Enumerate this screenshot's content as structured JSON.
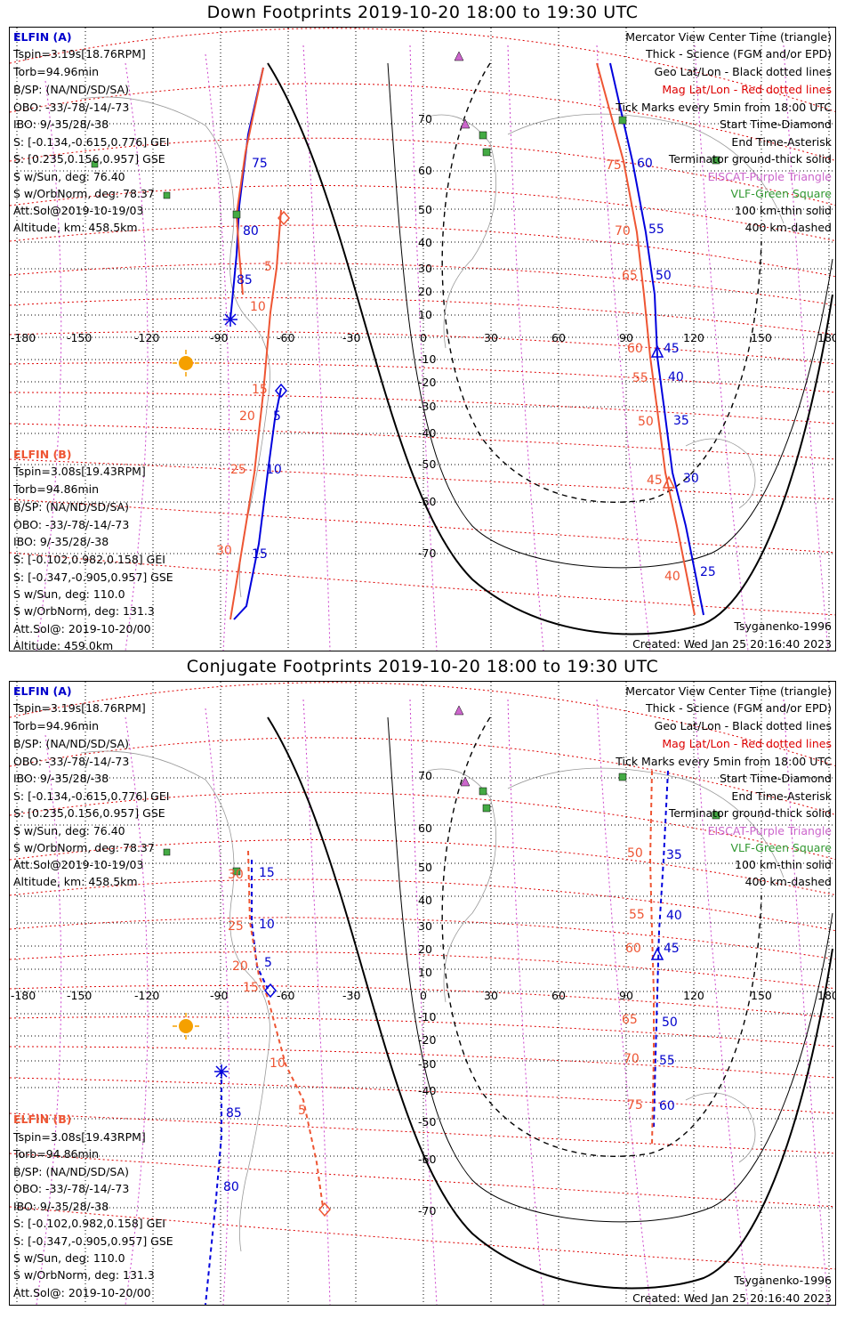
{
  "titles": {
    "down": "Down Footprints 2019-10-20 18:00 to 19:30 UTC",
    "conjugate": "Conjugate Footprints 2019-10-20 18:00 to 19:30 UTC"
  },
  "elfin_a": {
    "name": "ELFIN (A)",
    "tspin": "Tspin=3.19s[18.76RPM]",
    "torb": "Torb=94.96min",
    "bsp": "B/SP: (NA/ND/SD/SA)",
    "obo": "OBO: -33/-78/-14/-73",
    "ibo": "IBO: 9/-35/28/-38",
    "s_gei": "S: [-0.134,-0.615,0.776] GEI",
    "s_gse": "S: [0.235,0.156,0.957] GSE",
    "s_sun": "S w/Sun, deg: 76.40",
    "s_orbnorm": "S w/OrbNorm, deg: 78.37",
    "attsol": "Att.Sol@2019-10-19/03",
    "altitude": "Altitude, km: 458.5km"
  },
  "elfin_b": {
    "name": "ELFIN (B)",
    "tspin": "Tspin=3.08s[19.43RPM]",
    "torb": "Torb=94.86min",
    "bsp": "B/SP: (NA/ND/SD/SA)",
    "obo": "OBO: -33/-78/-14/-73",
    "ibo": "IBO: 9/-35/28/-38",
    "s_gei": "S: [-0.102,0.982,0.158] GEI",
    "s_gse": "S: [-0.347,-0.905,0.957] GSE",
    "s_sun": "S w/Sun, deg: 110.0",
    "s_orbnorm": "S w/OrbNorm, deg: 131.3",
    "attsol": "Att.Sol@: 2019-10-20/00",
    "altitude": "Altitude: 459.0km"
  },
  "legend": {
    "mercator": "Mercator View Center Time (triangle)",
    "science": "Thick - Science (FGM and/or EPD)",
    "geo": "Geo Lat/Lon - Black dotted lines",
    "mag": "Mag Lat/Lon - Red dotted lines",
    "ticks": "Tick Marks every 5min from 18:00 UTC",
    "start": "Start Time-Diamond",
    "end": "End Time-Asterisk",
    "terminator": "Terminator ground-thick solid",
    "eiscat": "EISCAT-Purple Triangle",
    "vlf": "VLF-Green Square",
    "km100": "100 km-thin solid",
    "km400": "400 km-dashed"
  },
  "footer": {
    "model": "Tsyganenko-1996",
    "created": "Created: Wed Jan 25 20:16:40 2023"
  },
  "axes": {
    "lon_ticks": [
      "-180",
      "-150",
      "-120",
      "-90",
      "-60",
      "-30",
      "0",
      "30",
      "60",
      "90",
      "120",
      "150",
      "180"
    ],
    "lat_ticks": [
      "70",
      "60",
      "50",
      "40",
      "30",
      "20",
      "10",
      "0",
      "-10",
      "-20",
      "-30",
      "-40",
      "-50",
      "-60",
      "-70"
    ]
  },
  "colors": {
    "elfin_a": "#0000cc",
    "elfin_b": "#ee5533",
    "mag_grid": "#dd0000",
    "geo_grid": "#000000",
    "eiscat": "#cc66cc",
    "vlf": "#339933",
    "sun": "#f5a000"
  },
  "down_tracks": {
    "a_west_ticks": [
      "75",
      "80",
      "85"
    ],
    "a_mid_ticks": [
      "5",
      "10",
      "15"
    ],
    "b_west_ticks": [
      "5",
      "10",
      "15",
      "20",
      "25",
      "30"
    ],
    "a_east_ticks": [
      "60",
      "55",
      "50",
      "45",
      "40",
      "35",
      "30",
      "25"
    ],
    "b_east_ticks": [
      "75",
      "70",
      "65",
      "60",
      "55",
      "50",
      "45",
      "40"
    ]
  },
  "conj_tracks": {
    "a_west_ticks": [
      "15",
      "10",
      "5",
      "85",
      "80"
    ],
    "b_west_ticks": [
      "30",
      "25",
      "20",
      "15",
      "10",
      "5"
    ],
    "a_east_ticks": [
      "35",
      "40",
      "45",
      "50",
      "55",
      "60"
    ],
    "b_east_ticks": [
      "50",
      "55",
      "60",
      "65",
      "70",
      "75"
    ]
  }
}
